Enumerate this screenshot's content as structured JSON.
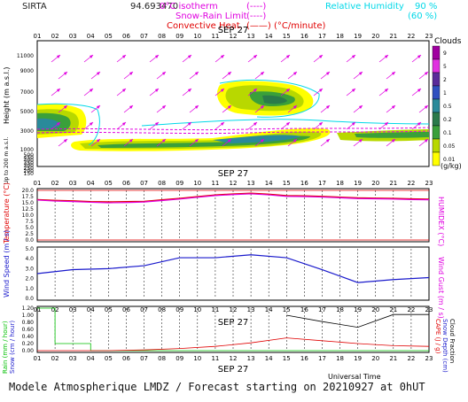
{
  "header": {
    "site": "SIRTA",
    "coords": "94.693470",
    "isotherm_label": "0°C isotherm",
    "isotherm_style": "(----)",
    "snow_label": "Snow-Rain Limit",
    "snow_style": "(----)",
    "conv_label": "Convective Heat.",
    "conv_style": "(——) (°C/minute)",
    "rh_label": "Relative Humidity",
    "rh90": "90 %",
    "rh60": "(60 %)"
  },
  "colors": {
    "magenta": "#e000e0",
    "cyan": "#00d8e8",
    "red": "#e00000",
    "blue": "#1a1acc",
    "green": "#00c000",
    "black": "#000000"
  },
  "hours": [
    "01",
    "02",
    "03",
    "04",
    "05",
    "06",
    "07",
    "08",
    "09",
    "10",
    "11",
    "12",
    "13",
    "14",
    "15",
    "16",
    "17",
    "18",
    "19",
    "20",
    "21",
    "22",
    "23"
  ],
  "date_label": "SEP 27",
  "clouds": {
    "title": "Clouds",
    "unit": "(g/kg)",
    "legend_values": [
      "9",
      "5",
      "2",
      "1",
      "0.5",
      "0.2",
      "0.1",
      "0.05",
      "0.01"
    ],
    "legend_colors": [
      "#a000a0",
      "#e030e0",
      "#5a2a9a",
      "#3050c0",
      "#2a8a9a",
      "#2a7a4a",
      "#3aa03a",
      "#b8d800",
      "#ffff00"
    ],
    "ylabel": "Height (m a.s.l.)",
    "yticks": [
      "11000",
      "9000",
      "7000",
      "5000",
      "3000",
      "1000",
      "500",
      "450",
      "400",
      "350",
      "300",
      "250",
      "200",
      "150"
    ],
    "ylow_label": "Up to 200 m a.s.l."
  },
  "temperature": {
    "ylabel": "Temperature (°C)",
    "ylabel_right": "HUMIDEX (°C)",
    "yticks": [
      "20.0",
      "17.5",
      "15.0",
      "12.5",
      "10.0",
      "7.5",
      "5.0",
      "2.5",
      "0.0"
    ]
  },
  "wind": {
    "ylabel": "Wind Speed (m / s)",
    "ylabel_right": "Wind Gust (m / s)",
    "yticks": [
      "5.0",
      "4.0",
      "3.0",
      "2.0",
      "1.0",
      "0.0"
    ]
  },
  "precip": {
    "yticks": [
      "1.20",
      "1.00",
      "0.80",
      "0.60",
      "0.40",
      "0.20",
      "0.00"
    ],
    "ylabel_rain": "Rain (mm / hour)",
    "ylabel_snow": "Snow (cm / hour)",
    "ylabel_cape": "CAPE (J / g)",
    "ylabel_snowdepth": "Snow Depth (cm)",
    "ylabel_cloudfrac": "Cloud Fraction",
    "xlabel": "Universal Time"
  },
  "footer": "Modele Atmospherique LMDZ / Forecast starting on 20210927 at 0hUT",
  "chart_data": [
    {
      "type": "heatmap",
      "title": "Clouds",
      "series": [
        {
          "name": "Relative Humidity"
        }
      ]
    },
    {
      "type": "line",
      "title": "",
      "x": [
        1,
        2,
        3,
        4,
        5,
        6,
        7,
        8,
        9,
        10,
        11,
        12,
        13,
        14,
        15,
        16,
        17,
        18,
        19,
        20,
        21,
        22,
        23
      ],
      "series": [
        {
          "name": "Temperature",
          "values": [
            16.3,
            16.0,
            15.8,
            15.5,
            15.4,
            15.5,
            15.6,
            16.2,
            16.8,
            17.5,
            18.2,
            18.6,
            18.9,
            18.5,
            17.9,
            17.8,
            17.6,
            17.3,
            17.0,
            16.9,
            16.8,
            16.6,
            16.5
          ]
        },
        {
          "name": "HUMIDEX",
          "values": [
            16.1,
            15.7,
            15.5,
            15.2,
            15.0,
            15.1,
            15.3,
            15.9,
            16.5,
            17.2,
            17.9,
            18.3,
            18.6,
            18.2,
            17.6,
            17.5,
            17.3,
            17.0,
            16.7,
            16.6,
            16.5,
            16.3,
            16.2
          ]
        }
      ],
      "ylim": [
        0,
        20
      ]
    },
    {
      "type": "line",
      "title": "",
      "x": [
        1,
        3,
        5,
        7,
        9,
        11,
        13,
        15,
        17,
        19,
        21,
        23
      ],
      "series": [
        {
          "name": "Wind Speed",
          "values": [
            2.5,
            2.9,
            3.0,
            3.3,
            4.1,
            4.1,
            4.4,
            4.1,
            2.9,
            1.6,
            1.9,
            2.1
          ]
        }
      ],
      "ylim": [
        0,
        5
      ]
    },
    {
      "type": "line",
      "title": "",
      "series": [
        {
          "name": "Rain",
          "x": [
            1,
            2,
            2,
            4,
            4,
            23
          ],
          "values": [
            1.2,
            1.2,
            0.2,
            0.2,
            0.0,
            0.0
          ]
        },
        {
          "name": "CAPE",
          "x": [
            1,
            3,
            5,
            7,
            9,
            11,
            13,
            15,
            17,
            19,
            21,
            23
          ],
          "values": [
            0.0,
            0.0,
            0.0,
            0.02,
            0.06,
            0.12,
            0.22,
            0.36,
            0.28,
            0.2,
            0.14,
            0.12
          ]
        },
        {
          "name": "Cloud Fraction",
          "x": [
            15,
            17,
            19,
            21,
            23
          ],
          "values": [
            1.0,
            0.82,
            0.66,
            1.02,
            1.02
          ]
        }
      ],
      "ylim": [
        0,
        1.2
      ]
    }
  ]
}
